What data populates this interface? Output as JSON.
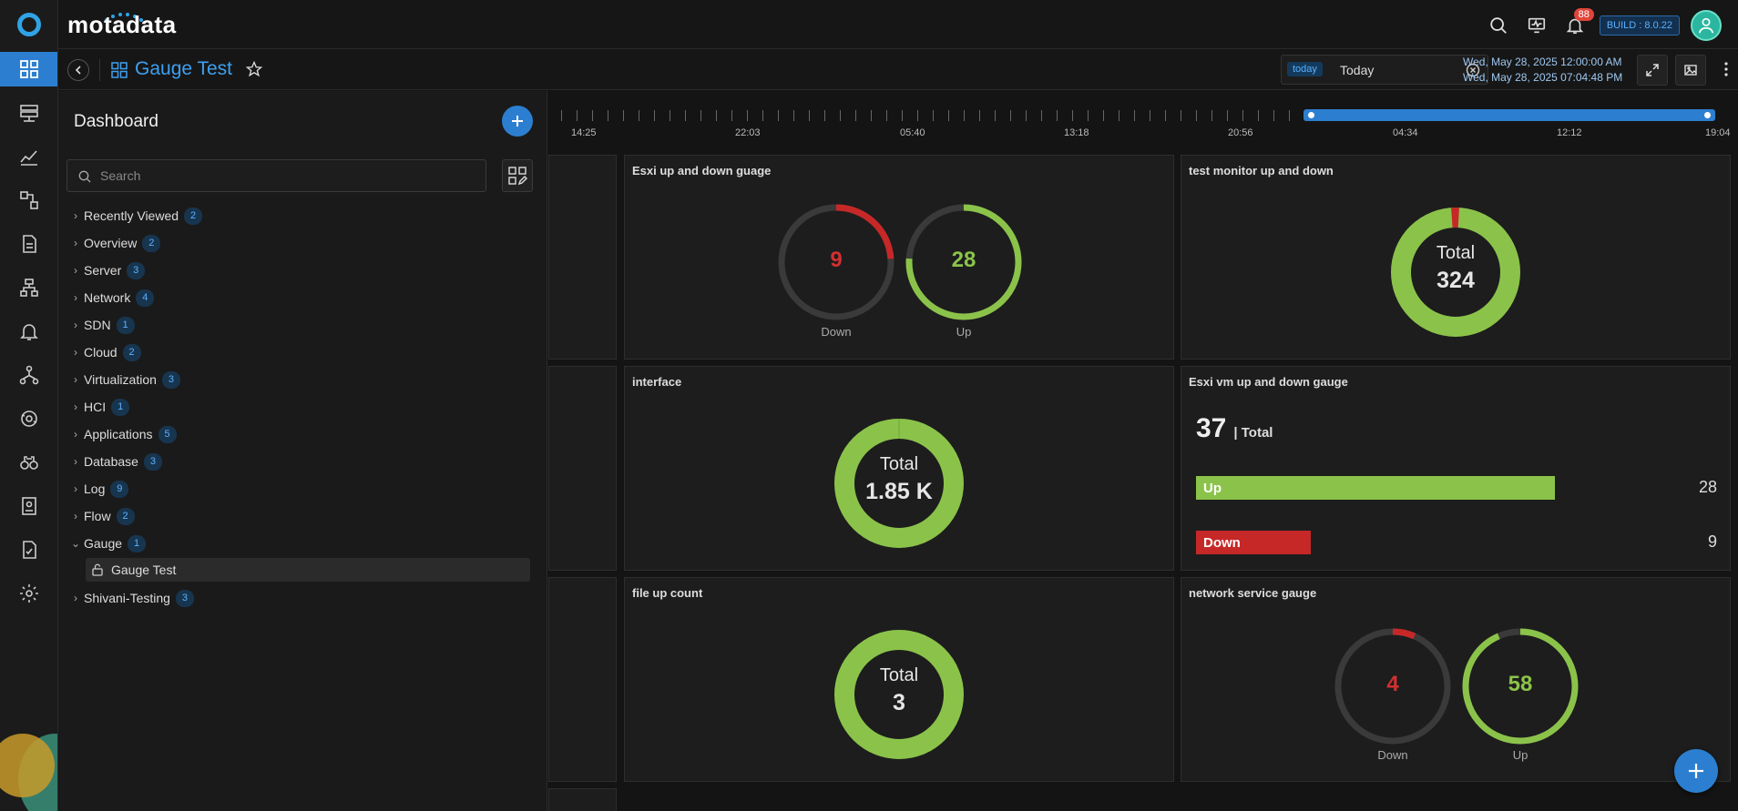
{
  "app": {
    "brand": "motadata",
    "build": "BUILD : 8.0.22",
    "notifications": "88"
  },
  "header": {
    "title": "Gauge Test",
    "today_chip": "today",
    "today_value": "Today",
    "range_start": "Wed, May 28, 2025 12:00:00 AM",
    "range_end": "Wed, May 28, 2025 07:04:48 PM"
  },
  "sidebar_panel": {
    "title": "Dashboard",
    "search_placeholder": "Search",
    "items": [
      {
        "label": "Recently Viewed",
        "count": "2"
      },
      {
        "label": "Overview",
        "count": "2"
      },
      {
        "label": "Server",
        "count": "3"
      },
      {
        "label": "Network",
        "count": "4"
      },
      {
        "label": "SDN",
        "count": "1"
      },
      {
        "label": "Cloud",
        "count": "2"
      },
      {
        "label": "Virtualization",
        "count": "3"
      },
      {
        "label": "HCI",
        "count": "1"
      },
      {
        "label": "Applications",
        "count": "5"
      },
      {
        "label": "Database",
        "count": "3"
      },
      {
        "label": "Log",
        "count": "9"
      },
      {
        "label": "Flow",
        "count": "2"
      },
      {
        "label": "Gauge",
        "count": "1"
      },
      {
        "label": "Shivani-Testing",
        "count": "3"
      }
    ],
    "gauge_child": "Gauge Test"
  },
  "timeline": {
    "labels": [
      "14:25",
      "22:03",
      "05:40",
      "13:18",
      "20:56",
      "04:34",
      "12:12",
      "19:04"
    ]
  },
  "widgets": {
    "esxi_gauge": {
      "title": "Esxi up and down guage",
      "down_value": "9",
      "down_label": "Down",
      "up_value": "28",
      "up_label": "Up",
      "down_fraction": 0.24,
      "up_fraction": 0.76
    },
    "test_monitor": {
      "title": "test monitor up and down",
      "total_label": "Total",
      "total": "324",
      "down_fraction": 0.02
    },
    "interface": {
      "title": "interface",
      "total_label": "Total",
      "total": "1.85 K"
    },
    "esxi_vm": {
      "title": "Esxi vm up and down gauge",
      "total": "37",
      "total_label": "| Total",
      "up_label": "Up",
      "up_value": "28",
      "down_label": "Down",
      "down_value": "9",
      "up_fraction": 0.757,
      "down_fraction": 0.243
    },
    "file_up": {
      "title": "file up count",
      "total_label": "Total",
      "total": "3"
    },
    "network_service": {
      "title": "network service gauge",
      "down_value": "4",
      "down_label": "Down",
      "up_value": "58",
      "up_label": "Up",
      "down_fraction": 0.065,
      "up_fraction": 0.935
    }
  },
  "colors": {
    "accent": "#2c7fd0",
    "up": "#8bc34a",
    "down": "#c62828",
    "track": "#3a3a3a"
  }
}
